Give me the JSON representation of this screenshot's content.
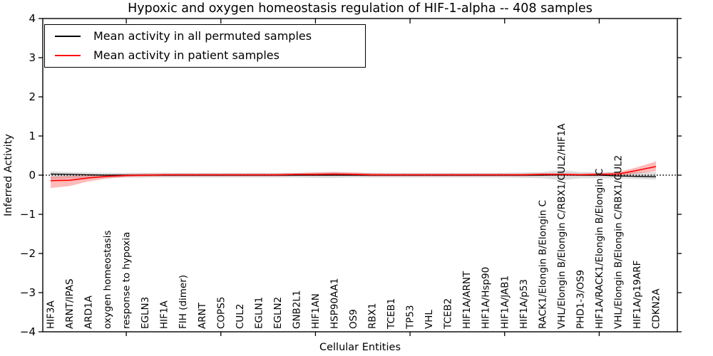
{
  "figure": {
    "title": "Hypoxic and oxygen homeostasis regulation of HIF-1-alpha -- 408 samples"
  },
  "chart_data": {
    "type": "line",
    "title": "Hypoxic and oxygen homeostasis regulation of HIF-1-alpha -- 408 samples",
    "xlabel": "Cellular Entities",
    "ylabel": "Inferred Activity",
    "ylim": [
      -4,
      4
    ],
    "ytick_values": [
      4,
      3,
      2,
      1,
      0,
      -1,
      -2,
      -3,
      -4
    ],
    "ytick_labels": [
      "4",
      "3",
      "2",
      "1",
      "0",
      "−1",
      "−2",
      "−3",
      "−4"
    ],
    "grid": false,
    "legend": {
      "position": "upper left",
      "entries": [
        {
          "label": "Mean activity in all permuted samples",
          "color": "#000000"
        },
        {
          "label": "Mean activity in patient samples",
          "color": "#ff0000"
        }
      ]
    },
    "zero_line": {
      "y": 0,
      "style": "dotted",
      "color": "#000000"
    },
    "xtick_category_indices_1based": [
      5,
      10,
      15,
      20,
      25,
      30
    ],
    "categories": [
      "HIF3A",
      "ARNT/IPAS",
      "ARD1A",
      "oxygen homeostasis",
      "response to hypoxia",
      "EGLN3",
      "HIF1A",
      "FIH (dimer)",
      "ARNT",
      "COPS5",
      "CUL2",
      "EGLN1",
      "EGLN2",
      "GNB2L1",
      "HIF1AN",
      "HSP90AA1",
      "OS9",
      "RBX1",
      "TCEB1",
      "TP53",
      "VHL",
      "TCEB2",
      "HIF1A/ARNT",
      "HIF1A/Hsp90",
      "HIF1A/JAB1",
      "HIF1A/p53",
      "RACK1/Elongin B/Elongin C",
      "VHL/Elongin B/Elongin C/RBX1/CUL2/HIF1A",
      "PHD1-3/OS9",
      "HIF1A/RACK1/Elongin B/Elongin C",
      "VHL/Elongin B/Elongin C/RBX1/CUL2",
      "HIF1A/p19ARF",
      "CDKN2A"
    ],
    "series": [
      {
        "name": "Mean activity in all permuted samples",
        "color": "#000000",
        "values": [
          0.03,
          0.02,
          0.01,
          0.0,
          0.0,
          0.0,
          0.0,
          0.0,
          0.0,
          0.0,
          0.0,
          0.0,
          0.0,
          0.0,
          0.0,
          0.0,
          0.0,
          0.0,
          0.0,
          0.0,
          0.0,
          0.0,
          0.0,
          0.0,
          0.0,
          0.0,
          0.0,
          0.01,
          0.0,
          0.0,
          -0.02,
          -0.03,
          -0.04
        ]
      },
      {
        "name": "Mean activity in patient samples",
        "color": "#ff0000",
        "values": [
          -0.14,
          -0.13,
          -0.07,
          -0.03,
          -0.01,
          0.0,
          0.01,
          0.01,
          0.01,
          0.01,
          0.01,
          0.01,
          0.01,
          0.02,
          0.02,
          0.03,
          0.02,
          0.01,
          0.01,
          0.01,
          0.01,
          0.01,
          0.01,
          0.01,
          0.01,
          0.01,
          0.02,
          0.02,
          0.01,
          0.02,
          0.03,
          0.12,
          0.22
        ]
      }
    ],
    "bands": [
      {
        "series": "Mean activity in all permuted samples",
        "color": "#999999",
        "alpha": 0.32,
        "upper": [
          0.1,
          0.08,
          0.07,
          0.06,
          0.06,
          0.06,
          0.06,
          0.06,
          0.06,
          0.06,
          0.06,
          0.06,
          0.06,
          0.06,
          0.07,
          0.07,
          0.06,
          0.06,
          0.06,
          0.06,
          0.06,
          0.06,
          0.06,
          0.06,
          0.06,
          0.07,
          0.08,
          0.13,
          0.08,
          0.08,
          0.07,
          0.08,
          0.08
        ],
        "lower": [
          -0.1,
          -0.08,
          -0.07,
          -0.06,
          -0.06,
          -0.06,
          -0.06,
          -0.06,
          -0.06,
          -0.06,
          -0.06,
          -0.06,
          -0.06,
          -0.06,
          -0.07,
          -0.07,
          -0.06,
          -0.06,
          -0.06,
          -0.06,
          -0.06,
          -0.06,
          -0.06,
          -0.06,
          -0.06,
          -0.07,
          -0.08,
          -0.13,
          -0.08,
          -0.08,
          -0.09,
          -0.1,
          -0.11
        ]
      },
      {
        "series": "Mean activity in patient samples",
        "color": "#ff0000",
        "alpha": 0.27,
        "upper": [
          -0.03,
          -0.02,
          0.0,
          0.02,
          0.03,
          0.04,
          0.04,
          0.04,
          0.04,
          0.04,
          0.04,
          0.04,
          0.04,
          0.05,
          0.07,
          0.08,
          0.07,
          0.05,
          0.04,
          0.04,
          0.04,
          0.04,
          0.04,
          0.04,
          0.04,
          0.04,
          0.05,
          0.05,
          0.04,
          0.05,
          0.08,
          0.2,
          0.35
        ],
        "lower": [
          -0.33,
          -0.28,
          -0.16,
          -0.09,
          -0.05,
          -0.04,
          -0.03,
          -0.03,
          -0.03,
          -0.03,
          -0.03,
          -0.03,
          -0.03,
          -0.02,
          -0.02,
          -0.02,
          -0.02,
          -0.03,
          -0.03,
          -0.03,
          -0.03,
          -0.03,
          -0.03,
          -0.03,
          -0.03,
          -0.03,
          -0.02,
          -0.02,
          -0.02,
          -0.02,
          -0.02,
          0.04,
          0.1
        ]
      }
    ]
  }
}
